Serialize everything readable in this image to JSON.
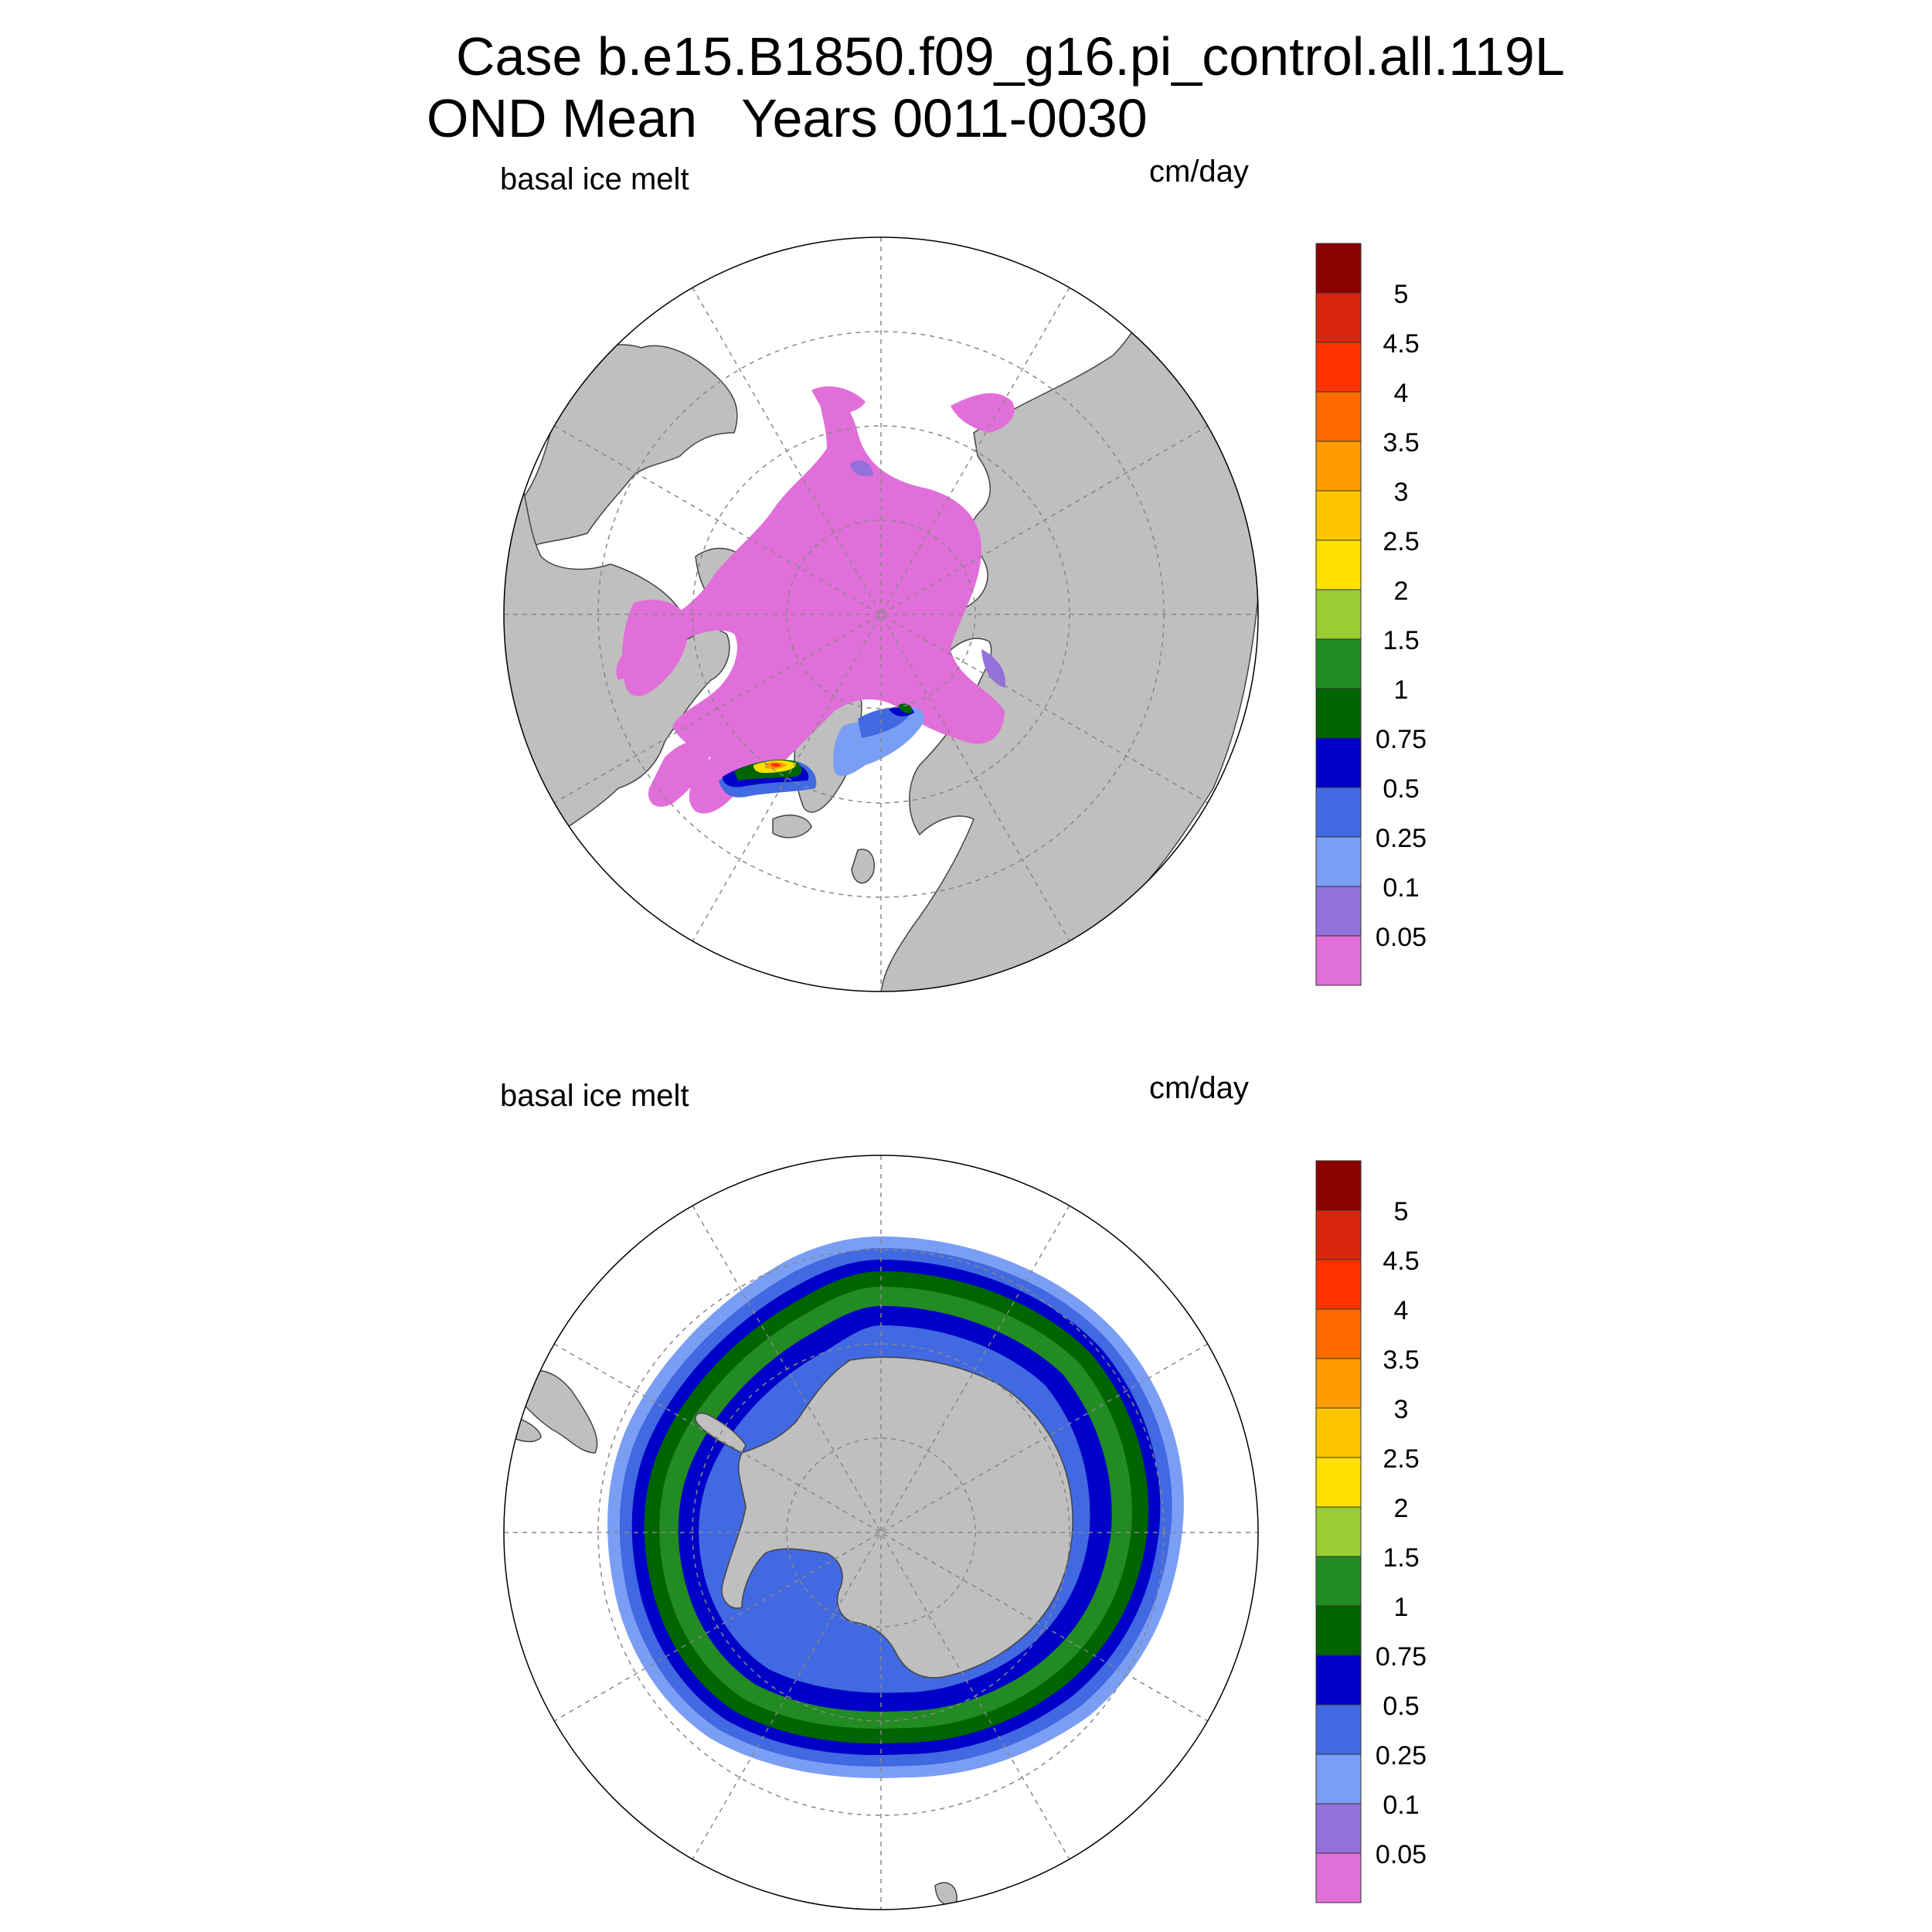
{
  "title": {
    "line1": "Case b.e15.B1850.f09_g16.pi_control.all.119L",
    "line2": "OND Mean   Years 0011-0030"
  },
  "panels": [
    {
      "hemisphere": "north",
      "variable_label": "basal ice melt",
      "units_label": "cm/day"
    },
    {
      "hemisphere": "south",
      "variable_label": "basal ice melt",
      "units_label": "cm/day"
    }
  ],
  "colorbar": {
    "labels": [
      "0.05",
      "0.1",
      "0.25",
      "0.5",
      "0.75",
      "1",
      "1.5",
      "2",
      "2.5",
      "3",
      "3.5",
      "4",
      "4.5",
      "5"
    ],
    "colors": [
      "#e16fd9",
      "#9370db",
      "#7b9ef5",
      "#4169e1",
      "#0000c8",
      "#006400",
      "#228b22",
      "#9acd32",
      "#ffe100",
      "#ffc400",
      "#ff9c00",
      "#ff6a00",
      "#ff3200",
      "#d8260e",
      "#8b0000"
    ]
  },
  "map_colors": {
    "land": "#bfbfbf",
    "ocean": "#ffffff",
    "coast": "#444444",
    "grid": "#888888"
  }
}
